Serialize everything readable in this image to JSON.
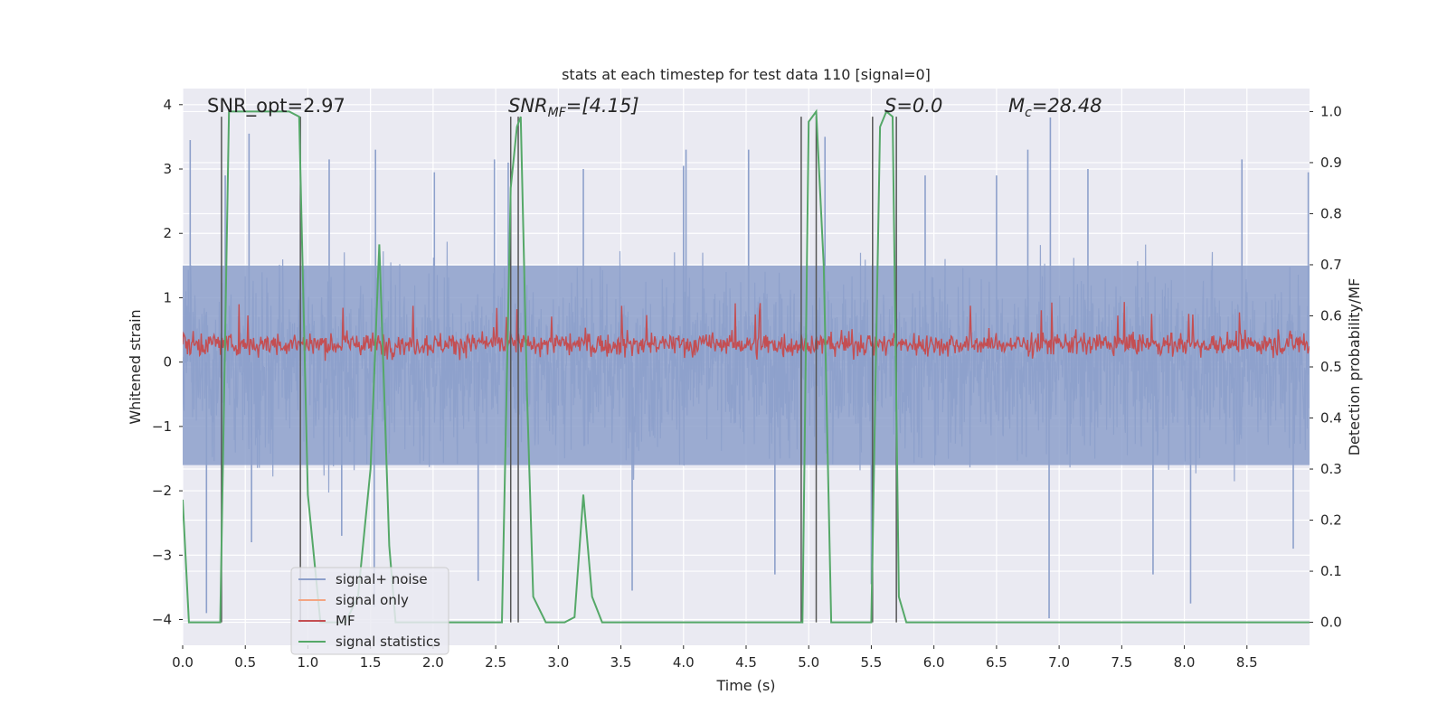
{
  "chart_data": {
    "type": "line",
    "title": "stats at each timestep for test data 110 [signal=0]",
    "xlabel": "Time (s)",
    "ylabel": "Whitened strain",
    "y2label": "Detection probability/MF",
    "xlim": [
      0,
      9.0
    ],
    "ylim": [
      -4.4,
      4.25
    ],
    "y2lim": [
      -0.045,
      1.045
    ],
    "xticks": [
      0.0,
      0.5,
      1.0,
      1.5,
      2.0,
      2.5,
      3.0,
      3.5,
      4.0,
      4.5,
      5.0,
      5.5,
      6.0,
      6.5,
      7.0,
      7.5,
      8.0,
      8.5
    ],
    "xtick_labels": [
      "0.0",
      "0.5",
      "1.0",
      "1.5",
      "2.0",
      "2.5",
      "3.0",
      "3.5",
      "4.0",
      "4.5",
      "5.0",
      "5.5",
      "6.0",
      "6.5",
      "7.0",
      "7.5",
      "8.0",
      "8.5"
    ],
    "yticks": [
      4,
      3,
      2,
      1,
      0,
      -1,
      -2,
      -3,
      -4
    ],
    "ytick_labels": [
      "4",
      "3",
      "2",
      "1",
      "0",
      "−1",
      "−2",
      "−3",
      "−4"
    ],
    "y2ticks": [
      1.0,
      0.9,
      0.8,
      0.7,
      0.6,
      0.5,
      0.4,
      0.3,
      0.2,
      0.1,
      0.0
    ],
    "y2tick_labels": [
      "1.0",
      "0.9",
      "0.8",
      "0.7",
      "0.6",
      "0.5",
      "0.4",
      "0.3",
      "0.2",
      "0.1",
      "0.0"
    ],
    "annotations": {
      "snr_opt": "SNR_opt=2.97",
      "snr_mf": "SNR_MF=[4.15]",
      "s": "S=0.0",
      "mc": "M_c=28.48"
    },
    "legend": {
      "placement": "lower-left",
      "entries": [
        "signal+ noise",
        "signal only",
        "MF",
        "signal statistics"
      ],
      "colors": [
        "#8da0cb",
        "#f4a582",
        "#c44e52",
        "#55a868"
      ]
    },
    "series": [
      {
        "name": "signal+ noise",
        "color": "#8da0cb",
        "envelope": {
          "description": "whitened strain noise, samples in approx [-2.3, 2.3] with spikes",
          "typical_abs": 2.0,
          "spikes": [
            [
              0.06,
              3.45
            ],
            [
              0.19,
              -3.9
            ],
            [
              0.34,
              2.9
            ],
            [
              0.53,
              3.55
            ],
            [
              0.55,
              -2.8
            ],
            [
              1.17,
              3.15
            ],
            [
              1.27,
              -2.7
            ],
            [
              1.53,
              -3.8
            ],
            [
              1.54,
              3.3
            ],
            [
              2.01,
              2.95
            ],
            [
              2.36,
              -3.4
            ],
            [
              2.49,
              3.15
            ],
            [
              2.6,
              3.1
            ],
            [
              3.2,
              3.0
            ],
            [
              3.59,
              -3.55
            ],
            [
              4.0,
              3.05
            ],
            [
              4.02,
              3.3
            ],
            [
              4.52,
              3.3
            ],
            [
              4.73,
              -3.3
            ],
            [
              5.13,
              3.5
            ],
            [
              5.5,
              -3.45
            ],
            [
              5.93,
              2.9
            ],
            [
              6.5,
              2.9
            ],
            [
              6.75,
              3.3
            ],
            [
              6.93,
              3.8
            ],
            [
              6.92,
              -3.98
            ],
            [
              7.23,
              3.0
            ],
            [
              7.75,
              -3.3
            ],
            [
              8.05,
              -3.75
            ],
            [
              8.46,
              3.15
            ],
            [
              8.87,
              -2.9
            ],
            [
              8.99,
              2.95
            ]
          ]
        }
      },
      {
        "name": "signal only",
        "color": "#f4a582",
        "values_note": "not visible (zero)"
      },
      {
        "name": "MF",
        "color": "#c44e52",
        "band": {
          "description": "matched-filter output between approx 0.0 and 0.55, occasional peaks to ~0.95",
          "min": 0.0,
          "max": 0.55
        }
      },
      {
        "name": "signal statistics",
        "color": "#55a868",
        "axis": "y2",
        "x": [
          0.0,
          0.05,
          0.1,
          0.2,
          0.3,
          0.37,
          0.5,
          0.7,
          0.85,
          0.93,
          1.0,
          1.1,
          1.2,
          1.3,
          1.4,
          1.5,
          1.57,
          1.65,
          1.7,
          1.8,
          2.0,
          2.2,
          2.4,
          2.55,
          2.62,
          2.67,
          2.7,
          2.75,
          2.8,
          2.9,
          3.05,
          3.13,
          3.2,
          3.27,
          3.35,
          3.5,
          4.0,
          4.5,
          4.93,
          4.95,
          5.0,
          5.06,
          5.12,
          5.18,
          5.3,
          5.5,
          5.57,
          5.62,
          5.67,
          5.72,
          5.78,
          5.85,
          6.0,
          7.0,
          8.0,
          9.0
        ],
        "y": [
          0.24,
          0.0,
          0.0,
          0.0,
          0.0,
          1.0,
          1.0,
          1.0,
          1.0,
          0.99,
          0.25,
          0.0,
          0.0,
          0.0,
          0.05,
          0.3,
          0.74,
          0.15,
          0.0,
          0.0,
          0.0,
          0.0,
          0.0,
          0.0,
          0.85,
          0.97,
          0.99,
          0.45,
          0.05,
          0.0,
          0.0,
          0.01,
          0.25,
          0.05,
          0.0,
          0.0,
          0.0,
          0.0,
          0.0,
          0.0,
          0.98,
          1.0,
          0.7,
          0.0,
          0.0,
          0.0,
          0.97,
          1.0,
          0.99,
          0.05,
          0.0,
          0.0,
          0.0,
          0.0,
          0.0,
          0.0
        ]
      }
    ],
    "vlines": {
      "color": "#555555",
      "x": [
        0.31,
        0.94,
        2.62,
        2.68,
        4.94,
        5.06,
        5.51,
        5.7
      ],
      "y_top": 0.99
    }
  }
}
